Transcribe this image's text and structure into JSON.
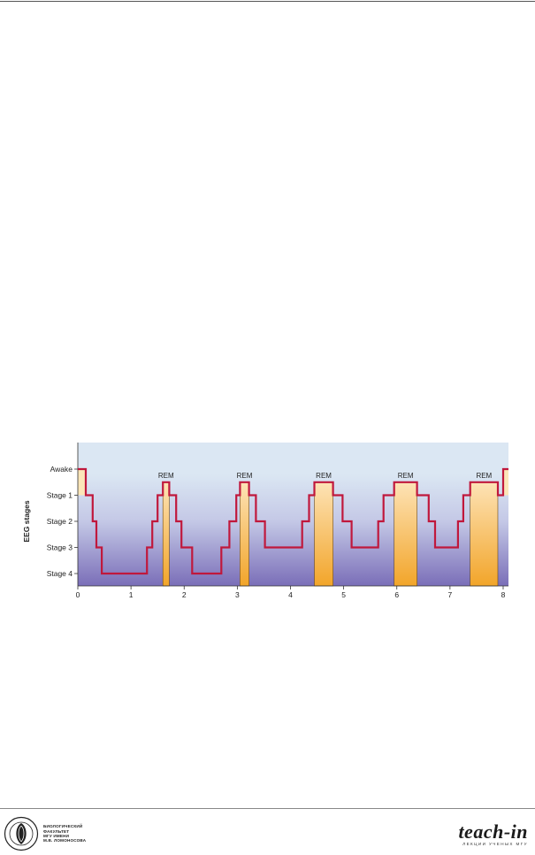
{
  "chart_data": {
    "type": "line",
    "title": "",
    "xlabel": "",
    "ylabel": "EEG stages",
    "x_ticks": [
      0,
      1,
      2,
      3,
      4,
      5,
      6,
      7,
      8
    ],
    "xlim": [
      0,
      8.1
    ],
    "y_categories": [
      "Awake",
      "Stage 1",
      "Stage 2",
      "Stage 3",
      "Stage 4"
    ],
    "step_path": [
      [
        0,
        0
      ],
      [
        0.15,
        0
      ],
      [
        0.15,
        1
      ],
      [
        0.28,
        1
      ],
      [
        0.28,
        2
      ],
      [
        0.35,
        2
      ],
      [
        0.35,
        3
      ],
      [
        0.45,
        3
      ],
      [
        0.45,
        4
      ],
      [
        1.3,
        4
      ],
      [
        1.3,
        3
      ],
      [
        1.4,
        3
      ],
      [
        1.4,
        2
      ],
      [
        1.5,
        2
      ],
      [
        1.5,
        1
      ],
      [
        1.6,
        1
      ],
      [
        1.6,
        0.5
      ],
      [
        1.72,
        0.5
      ],
      [
        1.72,
        1
      ],
      [
        1.85,
        1
      ],
      [
        1.85,
        2
      ],
      [
        1.95,
        2
      ],
      [
        1.95,
        3
      ],
      [
        2.15,
        3
      ],
      [
        2.15,
        4
      ],
      [
        2.7,
        4
      ],
      [
        2.7,
        3
      ],
      [
        2.85,
        3
      ],
      [
        2.85,
        2
      ],
      [
        2.98,
        2
      ],
      [
        2.98,
        1
      ],
      [
        3.05,
        1
      ],
      [
        3.05,
        0.5
      ],
      [
        3.22,
        0.5
      ],
      [
        3.22,
        1
      ],
      [
        3.35,
        1
      ],
      [
        3.35,
        2
      ],
      [
        3.52,
        2
      ],
      [
        3.52,
        3
      ],
      [
        4.22,
        3
      ],
      [
        4.22,
        2
      ],
      [
        4.35,
        2
      ],
      [
        4.35,
        1
      ],
      [
        4.45,
        1
      ],
      [
        4.45,
        0.5
      ],
      [
        4.8,
        0.5
      ],
      [
        4.8,
        1
      ],
      [
        4.98,
        1
      ],
      [
        4.98,
        2
      ],
      [
        5.15,
        2
      ],
      [
        5.15,
        3
      ],
      [
        5.65,
        3
      ],
      [
        5.65,
        2
      ],
      [
        5.75,
        2
      ],
      [
        5.75,
        1
      ],
      [
        5.95,
        1
      ],
      [
        5.95,
        0.5
      ],
      [
        6.38,
        0.5
      ],
      [
        6.38,
        1
      ],
      [
        6.6,
        1
      ],
      [
        6.6,
        2
      ],
      [
        6.72,
        2
      ],
      [
        6.72,
        3
      ],
      [
        7.15,
        3
      ],
      [
        7.15,
        2
      ],
      [
        7.25,
        2
      ],
      [
        7.25,
        1
      ],
      [
        7.38,
        1
      ],
      [
        7.38,
        0.5
      ],
      [
        7.9,
        0.5
      ],
      [
        7.9,
        1
      ],
      [
        8.0,
        1
      ],
      [
        8.0,
        0
      ],
      [
        8.1,
        0
      ]
    ],
    "rem_periods": [
      {
        "label": "REM",
        "start": 1.6,
        "end": 1.72
      },
      {
        "label": "REM",
        "start": 3.05,
        "end": 3.22
      },
      {
        "label": "REM",
        "start": 4.45,
        "end": 4.8
      },
      {
        "label": "REM",
        "start": 5.95,
        "end": 6.38
      },
      {
        "label": "REM",
        "start": 7.38,
        "end": 7.9
      }
    ],
    "awake_periods": [
      {
        "start": 0,
        "end": 0.15
      },
      {
        "start": 8.0,
        "end": 8.1
      }
    ],
    "colors": {
      "line": "#c0183c",
      "background_top": "#dbe7f3",
      "background_bottom": "#7a6eb8",
      "rem_fill_top": "#fde3b6",
      "rem_fill_bottom": "#f2a52a",
      "awake_fill": "#fbe6b8"
    }
  },
  "footer": {
    "faculty_lines": [
      "БИОЛОГИЧЕСКИЙ",
      "ФАКУЛЬТЕТ",
      "МГУ ИМЕНИ",
      "М.В. ЛОМОНОСОВА"
    ],
    "brand": "teach-in",
    "brand_sub": "ЛЕКЦИИ УЧЕНЫХ МГУ"
  }
}
